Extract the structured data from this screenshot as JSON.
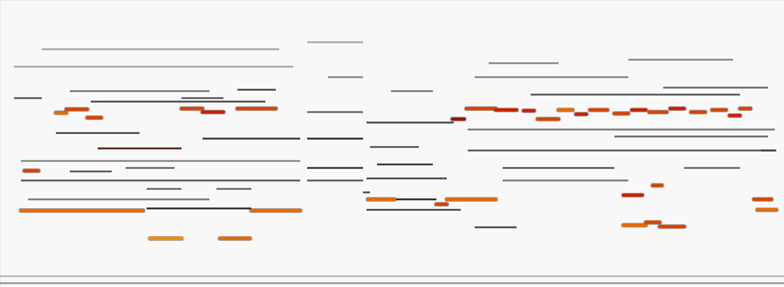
{
  "chart_data": {
    "type": "spectrogram",
    "xlim": [
      0,
      1123
    ],
    "ylim": [
      0,
      411
    ],
    "xticks": [],
    "yticks": [],
    "tick_labels": false,
    "grid": false,
    "segments": [
      {
        "x1": 30,
        "x2": 205,
        "y": 110,
        "level": 0.9
      },
      {
        "x1": 360,
        "x2": 430,
        "y": 110,
        "level": 0.9
      },
      {
        "x1": 210,
        "x2": 360,
        "y": 113,
        "level": 0.6
      },
      {
        "x1": 215,
        "x2": 260,
        "y": 70,
        "level": 0.95
      },
      {
        "x1": 315,
        "x2": 358,
        "y": 70,
        "level": 0.9
      },
      {
        "x1": 80,
        "x2": 95,
        "y": 250,
        "level": 0.9
      },
      {
        "x1": 95,
        "x2": 125,
        "y": 255,
        "level": 0.85
      },
      {
        "x1": 125,
        "x2": 145,
        "y": 243,
        "level": 0.85
      },
      {
        "x1": 35,
        "x2": 55,
        "y": 167,
        "level": 0.85
      },
      {
        "x1": 140,
        "x2": 260,
        "y": 199,
        "level": 0.7
      },
      {
        "x1": 260,
        "x2": 290,
        "y": 256,
        "level": 0.85
      },
      {
        "x1": 290,
        "x2": 320,
        "y": 251,
        "level": 0.8
      },
      {
        "x1": 340,
        "x2": 395,
        "y": 256,
        "level": 0.85
      },
      {
        "x1": 527,
        "x2": 565,
        "y": 126,
        "level": 0.9
      },
      {
        "x1": 565,
        "x2": 625,
        "y": 126,
        "level": 0.6
      },
      {
        "x1": 640,
        "x2": 710,
        "y": 126,
        "level": 0.9
      },
      {
        "x1": 625,
        "x2": 640,
        "y": 119,
        "level": 0.85
      },
      {
        "x1": 648,
        "x2": 665,
        "y": 241,
        "level": 0.75
      },
      {
        "x1": 668,
        "x2": 710,
        "y": 256,
        "level": 0.85
      },
      {
        "x1": 710,
        "x2": 740,
        "y": 254,
        "level": 0.8
      },
      {
        "x1": 750,
        "x2": 765,
        "y": 253,
        "level": 0.8
      },
      {
        "x1": 770,
        "x2": 800,
        "y": 241,
        "level": 0.85
      },
      {
        "x1": 800,
        "x2": 820,
        "y": 254,
        "level": 0.9
      },
      {
        "x1": 825,
        "x2": 840,
        "y": 248,
        "level": 0.8
      },
      {
        "x1": 845,
        "x2": 870,
        "y": 254,
        "level": 0.85
      },
      {
        "x1": 880,
        "x2": 900,
        "y": 249,
        "level": 0.85
      },
      {
        "x1": 905,
        "x2": 925,
        "y": 254,
        "level": 0.8
      },
      {
        "x1": 930,
        "x2": 955,
        "y": 251,
        "level": 0.85
      },
      {
        "x1": 960,
        "x2": 980,
        "y": 256,
        "level": 0.8
      },
      {
        "x1": 990,
        "x2": 1010,
        "y": 251,
        "level": 0.85
      },
      {
        "x1": 1020,
        "x2": 1040,
        "y": 254,
        "level": 0.85
      },
      {
        "x1": 1045,
        "x2": 1060,
        "y": 246,
        "level": 0.8
      },
      {
        "x1": 1060,
        "x2": 1075,
        "y": 256,
        "level": 0.85
      },
      {
        "x1": 893,
        "x2": 925,
        "y": 89,
        "level": 0.9
      },
      {
        "x1": 925,
        "x2": 945,
        "y": 93,
        "level": 0.85
      },
      {
        "x1": 945,
        "x2": 980,
        "y": 87,
        "level": 0.85
      },
      {
        "x1": 893,
        "x2": 920,
        "y": 132,
        "level": 0.8
      },
      {
        "x1": 935,
        "x2": 948,
        "y": 146,
        "level": 0.85
      },
      {
        "x1": 1085,
        "x2": 1112,
        "y": 111,
        "level": 0.9
      },
      {
        "x1": 1080,
        "x2": 1105,
        "y": 126,
        "level": 0.85
      },
      {
        "x1": 30,
        "x2": 430,
        "y": 153,
        "level": 0.45
      },
      {
        "x1": 130,
        "x2": 380,
        "y": 266,
        "level": 0.5
      },
      {
        "x1": 80,
        "x2": 200,
        "y": 221,
        "level": 0.5
      },
      {
        "x1": 20,
        "x2": 60,
        "y": 271,
        "level": 0.45
      },
      {
        "x1": 100,
        "x2": 300,
        "y": 281,
        "level": 0.35
      },
      {
        "x1": 40,
        "x2": 300,
        "y": 126,
        "level": 0.35
      },
      {
        "x1": 210,
        "x2": 260,
        "y": 141,
        "level": 0.4
      },
      {
        "x1": 310,
        "x2": 360,
        "y": 141,
        "level": 0.4
      },
      {
        "x1": 290,
        "x2": 430,
        "y": 213,
        "level": 0.55
      },
      {
        "x1": 260,
        "x2": 320,
        "y": 271,
        "level": 0.45
      },
      {
        "x1": 340,
        "x2": 395,
        "y": 283,
        "level": 0.5
      },
      {
        "x1": 180,
        "x2": 250,
        "y": 171,
        "level": 0.4
      },
      {
        "x1": 100,
        "x2": 160,
        "y": 166,
        "level": 0.45
      },
      {
        "x1": 440,
        "x2": 520,
        "y": 213,
        "level": 0.6
      },
      {
        "x1": 440,
        "x2": 520,
        "y": 171,
        "level": 0.55
      },
      {
        "x1": 440,
        "x2": 520,
        "y": 251,
        "level": 0.4
      },
      {
        "x1": 440,
        "x2": 520,
        "y": 153,
        "level": 0.45
      },
      {
        "x1": 470,
        "x2": 520,
        "y": 301,
        "level": 0.3
      },
      {
        "x1": 525,
        "x2": 650,
        "y": 236,
        "level": 0.5
      },
      {
        "x1": 540,
        "x2": 620,
        "y": 176,
        "level": 0.55
      },
      {
        "x1": 525,
        "x2": 640,
        "y": 156,
        "level": 0.5
      },
      {
        "x1": 525,
        "x2": 660,
        "y": 111,
        "level": 0.5
      },
      {
        "x1": 530,
        "x2": 600,
        "y": 201,
        "level": 0.45
      },
      {
        "x1": 560,
        "x2": 620,
        "y": 281,
        "level": 0.35
      },
      {
        "x1": 520,
        "x2": 530,
        "y": 136,
        "level": 0.5
      },
      {
        "x1": 680,
        "x2": 740,
        "y": 86,
        "level": 0.5
      },
      {
        "x1": 670,
        "x2": 1110,
        "y": 196,
        "level": 0.45
      },
      {
        "x1": 670,
        "x2": 1110,
        "y": 226,
        "level": 0.35
      },
      {
        "x1": 720,
        "x2": 880,
        "y": 171,
        "level": 0.45
      },
      {
        "x1": 720,
        "x2": 900,
        "y": 153,
        "level": 0.35
      },
      {
        "x1": 680,
        "x2": 900,
        "y": 301,
        "level": 0.3
      },
      {
        "x1": 760,
        "x2": 1060,
        "y": 276,
        "level": 0.45
      },
      {
        "x1": 880,
        "x2": 1100,
        "y": 216,
        "level": 0.4
      },
      {
        "x1": 980,
        "x2": 1060,
        "y": 171,
        "level": 0.4
      },
      {
        "x1": 700,
        "x2": 800,
        "y": 321,
        "level": 0.3
      },
      {
        "x1": 900,
        "x2": 1050,
        "y": 326,
        "level": 0.3
      },
      {
        "x1": 950,
        "x2": 1100,
        "y": 286,
        "level": 0.4
      },
      {
        "x1": 1090,
        "x2": 1112,
        "y": 196,
        "level": 0.5
      },
      {
        "x1": 0,
        "x2": 1123,
        "y": 6,
        "level": 0.25
      },
      {
        "x1": 0,
        "x2": 1123,
        "y": 16,
        "level": 0.15
      },
      {
        "x1": 30,
        "x2": 430,
        "y": 181,
        "level": 0.3
      },
      {
        "x1": 20,
        "x2": 420,
        "y": 316,
        "level": 0.2
      },
      {
        "x1": 440,
        "x2": 520,
        "y": 351,
        "level": 0.2
      },
      {
        "x1": 60,
        "x2": 400,
        "y": 341,
        "level": 0.2
      }
    ]
  }
}
